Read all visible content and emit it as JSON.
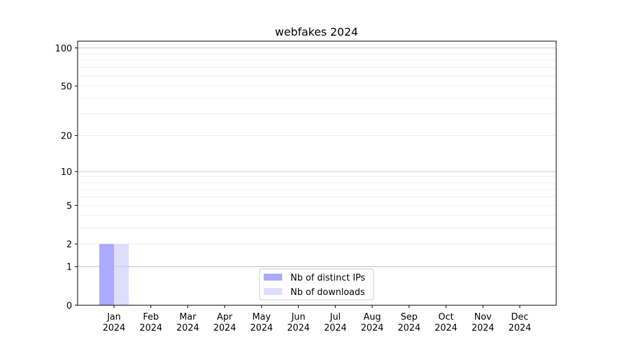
{
  "chart_data": {
    "type": "bar",
    "title": "webfakes 2024",
    "xlabel": "",
    "ylabel": "",
    "y_scale": "log(1+y)",
    "ylim": [
      0,
      113
    ],
    "y_ticks": [
      0,
      1,
      2,
      5,
      10,
      20,
      50,
      100
    ],
    "y_tick_labels": [
      "0",
      "1",
      "2",
      "5",
      "10",
      "20",
      "50",
      "100"
    ],
    "grid": true,
    "categories": [
      "Jan\n2024",
      "Feb\n2024",
      "Mar\n2024",
      "Apr\n2024",
      "May\n2024",
      "Jun\n2024",
      "Jul\n2024",
      "Aug\n2024",
      "Sep\n2024",
      "Oct\n2024",
      "Nov\n2024",
      "Dec\n2024"
    ],
    "category_labels": [
      {
        "month": "Jan",
        "year": "2024"
      },
      {
        "month": "Feb",
        "year": "2024"
      },
      {
        "month": "Mar",
        "year": "2024"
      },
      {
        "month": "Apr",
        "year": "2024"
      },
      {
        "month": "May",
        "year": "2024"
      },
      {
        "month": "Jun",
        "year": "2024"
      },
      {
        "month": "Jul",
        "year": "2024"
      },
      {
        "month": "Aug",
        "year": "2024"
      },
      {
        "month": "Sep",
        "year": "2024"
      },
      {
        "month": "Oct",
        "year": "2024"
      },
      {
        "month": "Nov",
        "year": "2024"
      },
      {
        "month": "Dec",
        "year": "2024"
      }
    ],
    "series": [
      {
        "name": "Nb of distinct IPs",
        "color": "#aaaaff",
        "values": [
          2,
          0,
          0,
          0,
          0,
          0,
          0,
          0,
          0,
          0,
          0,
          0
        ]
      },
      {
        "name": "Nb of downloads",
        "color": "#ddddff",
        "values": [
          2,
          0,
          0,
          0,
          0,
          0,
          0,
          0,
          0,
          0,
          0,
          0
        ]
      }
    ],
    "legend_position": "bottom-center"
  }
}
